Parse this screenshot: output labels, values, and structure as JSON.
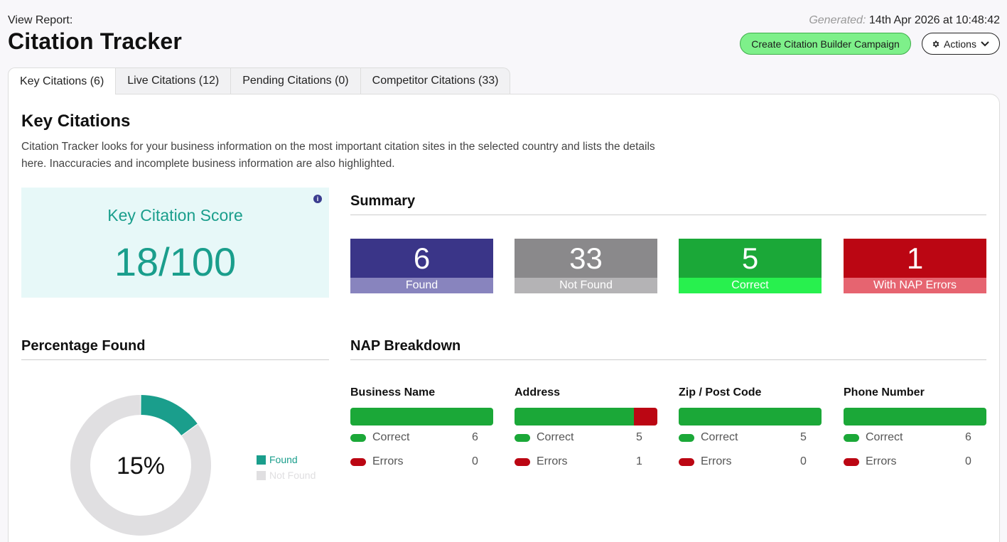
{
  "header": {
    "view_label": "View Report:",
    "title": "Citation Tracker",
    "generated_label": "Generated:",
    "generated_value": "14th Apr 2026 at 10:48:42"
  },
  "buttons": {
    "campaign": "Create Citation Builder Campaign",
    "actions": "Actions"
  },
  "tabs": [
    {
      "label": "Key Citations (6)",
      "active": true
    },
    {
      "label": "Live Citations (12)",
      "active": false
    },
    {
      "label": "Pending Citations (0)",
      "active": false
    },
    {
      "label": "Competitor Citations (33)",
      "active": false
    }
  ],
  "section": {
    "title": "Key Citations",
    "description": "Citation Tracker looks for your business information on the most important citation sites in the selected country and lists the details here. Inaccuracies and incomplete business information are also highlighted."
  },
  "score": {
    "label": "Key Citation Score",
    "value": "18/100"
  },
  "summary": {
    "title": "Summary",
    "stats": [
      {
        "value": "6",
        "label": "Found",
        "color": "#3a3588",
        "label_color": "#8884be"
      },
      {
        "value": "33",
        "label": "Not Found",
        "color": "#8a898b",
        "label_color": "#b4b3b5"
      },
      {
        "value": "5",
        "label": "Correct",
        "color": "#1ba838",
        "label_color": "#28f04e"
      },
      {
        "value": "1",
        "label": "With NAP Errors",
        "color": "#bb0613",
        "label_color": "#e66470"
      }
    ]
  },
  "percentage": {
    "title": "Percentage Found",
    "center_label": "15%",
    "legend": [
      {
        "label": "Found",
        "color": "#1a9e8c"
      },
      {
        "label": "Not Found",
        "color": "#e0dfe1"
      }
    ]
  },
  "chart_data": {
    "type": "pie",
    "categories": [
      "Found",
      "Not Found"
    ],
    "values": [
      15,
      85
    ],
    "title": "Percentage Found"
  },
  "nap": {
    "title": "NAP Breakdown",
    "correct_color": "#1ba838",
    "error_color": "#bb0613",
    "columns": [
      {
        "title": "Business Name",
        "correct_label": "Correct",
        "correct": 6,
        "errors_label": "Errors",
        "errors": 0
      },
      {
        "title": "Address",
        "correct_label": "Correct",
        "correct": 5,
        "errors_label": "Errors",
        "errors": 1
      },
      {
        "title": "Zip / Post Code",
        "correct_label": "Correct",
        "correct": 5,
        "errors_label": "Errors",
        "errors": 0
      },
      {
        "title": "Phone Number",
        "correct_label": "Correct",
        "correct": 6,
        "errors_label": "Errors",
        "errors": 0
      }
    ]
  },
  "icons": {
    "info": "info-icon",
    "gear": "gear-icon",
    "chevron": "chevron-down-icon"
  }
}
